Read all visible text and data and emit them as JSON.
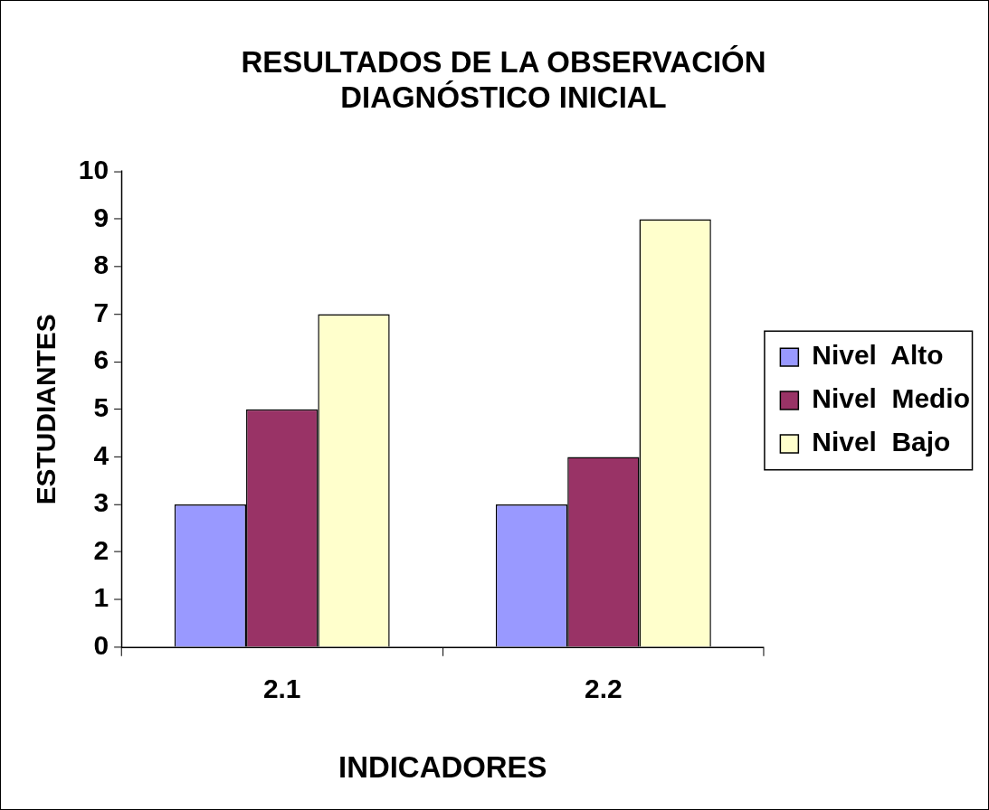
{
  "chart_data": {
    "type": "bar",
    "title": [
      "RESULTADOS DE LA OBSERVACIÓN",
      "DIAGNÓSTICO INICIAL"
    ],
    "xlabel": "INDICADORES",
    "ylabel": "ESTUDIANTES",
    "categories": [
      "2.1",
      "2.2"
    ],
    "series": [
      {
        "name": "Nivel  Alto",
        "color": "#9999ff",
        "values": [
          3,
          3
        ]
      },
      {
        "name": "Nivel  Medio",
        "color": "#993366",
        "values": [
          5,
          4
        ]
      },
      {
        "name": "Nivel  Bajo",
        "color": "#ffffcc",
        "values": [
          7,
          9
        ]
      }
    ],
    "ylim": [
      0,
      10
    ],
    "yticks": [
      0,
      1,
      2,
      3,
      4,
      5,
      6,
      7,
      8,
      9,
      10
    ],
    "grid": false,
    "legend": "right"
  }
}
